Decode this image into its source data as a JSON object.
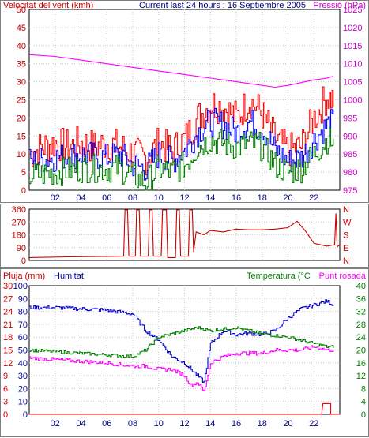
{
  "chart_data": [
    {
      "id": "wind",
      "type": "line",
      "title": "Current last 24 hours : 16 Septiembre 2005",
      "left_label": "Velocitat del vent (kmh)",
      "right_label": "Pressió (hPa)",
      "x_ticks": [
        "02",
        "04",
        "06",
        "08",
        "10",
        "12",
        "14",
        "16",
        "18",
        "20",
        "22"
      ],
      "x_range": [
        0,
        24
      ],
      "y_left": {
        "ticks": [
          "0",
          "5",
          "10",
          "15",
          "20",
          "25",
          "30",
          "35",
          "40",
          "45",
          "50"
        ],
        "range": [
          0,
          50
        ],
        "color": "#cc0000"
      },
      "y_right": {
        "ticks": [
          "975",
          "980",
          "985",
          "990",
          "995",
          "1000",
          "1005",
          "1010",
          "1015",
          "1020",
          "1025"
        ],
        "range": [
          975,
          1025
        ],
        "color": "#cc00cc"
      },
      "grid": true,
      "series": [
        {
          "color": "#ff0000",
          "axis": "left",
          "jitter": 5,
          "points": [
            [
              0,
              10
            ],
            [
              1,
              12
            ],
            [
              2,
              13
            ],
            [
              3,
              12
            ],
            [
              4,
              13
            ],
            [
              5,
              12
            ],
            [
              6,
              13
            ],
            [
              7,
              12
            ],
            [
              8,
              10
            ],
            [
              9,
              9
            ],
            [
              10,
              13
            ],
            [
              11,
              11
            ],
            [
              12,
              14
            ],
            [
              13,
              20
            ],
            [
              14,
              24
            ],
            [
              15,
              23
            ],
            [
              16,
              20
            ],
            [
              17,
              25
            ],
            [
              18,
              21
            ],
            [
              19,
              14
            ],
            [
              20,
              11
            ],
            [
              21,
              12
            ],
            [
              22,
              20
            ],
            [
              23,
              26
            ],
            [
              23.5,
              25
            ]
          ]
        },
        {
          "color": "#0000ff",
          "axis": "left",
          "jitter": 4,
          "points": [
            [
              0,
              8
            ],
            [
              2,
              9
            ],
            [
              4,
              10
            ],
            [
              6,
              9
            ],
            [
              7,
              10
            ],
            [
              8,
              7
            ],
            [
              9,
              6
            ],
            [
              10,
              10
            ],
            [
              11,
              8
            ],
            [
              12,
              11
            ],
            [
              13,
              16
            ],
            [
              14,
              19
            ],
            [
              15,
              18
            ],
            [
              16,
              16
            ],
            [
              17,
              19
            ],
            [
              18,
              17
            ],
            [
              19,
              11
            ],
            [
              20,
              8
            ],
            [
              21,
              9
            ],
            [
              22,
              14
            ],
            [
              23,
              18
            ],
            [
              23.5,
              19
            ]
          ]
        },
        {
          "color": "#008000",
          "axis": "left",
          "jitter": 4,
          "points": [
            [
              0,
              4
            ],
            [
              2,
              5
            ],
            [
              4,
              6
            ],
            [
              6,
              6
            ],
            [
              7,
              6
            ],
            [
              8,
              4
            ],
            [
              9,
              2
            ],
            [
              10,
              6
            ],
            [
              11,
              5
            ],
            [
              12,
              7
            ],
            [
              13,
              12
            ],
            [
              14,
              14
            ],
            [
              15,
              13
            ],
            [
              16,
              12
            ],
            [
              17,
              13
            ],
            [
              18,
              12
            ],
            [
              19,
              7
            ],
            [
              20,
              5
            ],
            [
              21,
              6
            ],
            [
              22,
              10
            ],
            [
              23,
              14
            ],
            [
              23.5,
              13
            ]
          ]
        },
        {
          "color": "#ff00ff",
          "axis": "right",
          "jitter": 0,
          "points": [
            [
              0,
              1012.5
            ],
            [
              2,
              1012
            ],
            [
              4,
              1011
            ],
            [
              6,
              1010
            ],
            [
              8,
              1009
            ],
            [
              10,
              1008
            ],
            [
              12,
              1007
            ],
            [
              14,
              1006
            ],
            [
              16,
              1005
            ],
            [
              18,
              1004
            ],
            [
              19,
              1003.5
            ],
            [
              20,
              1004
            ],
            [
              22,
              1005.5
            ],
            [
              23,
              1006
            ],
            [
              23.5,
              1006.5
            ]
          ]
        }
      ]
    },
    {
      "id": "direction",
      "type": "line",
      "y_left": {
        "ticks": [
          "0",
          "90",
          "180",
          "270",
          "360"
        ],
        "range": [
          0,
          360
        ],
        "color": "#cc0000"
      },
      "y_right": {
        "ticks": [
          "N",
          "E",
          "S",
          "W",
          "N"
        ],
        "color": "#cc0000"
      },
      "x_range": [
        0,
        24
      ],
      "grid": true,
      "series": [
        {
          "color": "#cc0000",
          "points": [
            [
              0,
              20
            ],
            [
              3,
              25
            ],
            [
              6,
              28
            ],
            [
              7.3,
              30
            ],
            [
              7.4,
              355
            ],
            [
              7.6,
              355
            ],
            [
              7.7,
              30
            ],
            [
              8.2,
              30
            ],
            [
              8.3,
              355
            ],
            [
              8.5,
              355
            ],
            [
              8.6,
              30
            ],
            [
              9.2,
              30
            ],
            [
              9.3,
              355
            ],
            [
              9.5,
              355
            ],
            [
              9.6,
              30
            ],
            [
              10.2,
              30
            ],
            [
              10.3,
              355
            ],
            [
              10.6,
              355
            ],
            [
              10.7,
              20
            ],
            [
              11.3,
              20
            ],
            [
              11.4,
              355
            ],
            [
              11.6,
              355
            ],
            [
              11.7,
              30
            ],
            [
              12.3,
              30
            ],
            [
              12.4,
              355
            ],
            [
              12.6,
              355
            ],
            [
              12.7,
              60
            ],
            [
              12.9,
              200
            ],
            [
              13.5,
              180
            ],
            [
              14,
              210
            ],
            [
              15,
              200
            ],
            [
              16,
              220
            ],
            [
              17,
              215
            ],
            [
              18,
              215
            ],
            [
              19,
              220
            ],
            [
              20,
              230
            ],
            [
              20.7,
              275
            ],
            [
              21.4,
              200
            ],
            [
              22,
              120
            ],
            [
              23,
              100
            ],
            [
              23.6,
              110
            ],
            [
              23.7,
              330
            ],
            [
              23.8,
              95
            ],
            [
              24,
              110
            ]
          ]
        }
      ]
    },
    {
      "id": "rain",
      "type": "line",
      "left_label": "Pluja (mm)",
      "mid_label": "Humitat",
      "right_label": "Temperatura (°C",
      "right_label2": "Punt rosada",
      "x_ticks": [
        "02",
        "04",
        "06",
        "08",
        "10",
        "12",
        "14",
        "16",
        "18",
        "20",
        "22"
      ],
      "x_range": [
        0,
        24
      ],
      "y_left": {
        "ticks": [
          "0",
          "3",
          "6",
          "9",
          "12",
          "15",
          "18",
          "21",
          "24",
          "27",
          "30"
        ],
        "range": [
          0,
          30
        ],
        "color": "#cc0000"
      },
      "y_left2": {
        "ticks": [
          "0",
          "10",
          "20",
          "30",
          "40",
          "50",
          "60",
          "70",
          "80",
          "90",
          "100"
        ],
        "range": [
          0,
          100
        ],
        "color": "#000099"
      },
      "y_right": {
        "ticks": [
          "0",
          "4",
          "8",
          "12",
          "16",
          "20",
          "24",
          "28",
          "32",
          "36",
          "40"
        ],
        "range": [
          0,
          40
        ],
        "color": "#008000"
      },
      "grid": true,
      "series": [
        {
          "name": "Humitat",
          "color": "#0000cc",
          "axis": "left2",
          "jitter": 1.5,
          "points": [
            [
              0,
              83
            ],
            [
              2,
              83
            ],
            [
              4,
              82
            ],
            [
              6,
              81
            ],
            [
              8,
              78
            ],
            [
              9,
              65
            ],
            [
              10,
              58
            ],
            [
              11,
              45
            ],
            [
              12,
              40
            ],
            [
              12.5,
              35
            ],
            [
              13,
              30
            ],
            [
              13.5,
              25
            ],
            [
              14,
              55
            ],
            [
              15,
              65
            ],
            [
              16,
              62
            ],
            [
              17,
              63
            ],
            [
              18,
              62
            ],
            [
              19,
              65
            ],
            [
              20,
              75
            ],
            [
              21,
              82
            ],
            [
              22,
              85
            ],
            [
              23,
              88
            ],
            [
              23.5,
              85
            ]
          ]
        },
        {
          "name": "Temperatura",
          "color": "#008000",
          "axis": "right",
          "jitter": 0.5,
          "points": [
            [
              0,
              20
            ],
            [
              2,
              19.5
            ],
            [
              4,
              19
            ],
            [
              6,
              18.5
            ],
            [
              8,
              18
            ],
            [
              9,
              20
            ],
            [
              10,
              24
            ],
            [
              11,
              25
            ],
            [
              12,
              26
            ],
            [
              13,
              27
            ],
            [
              14,
              26
            ],
            [
              15,
              26.5
            ],
            [
              16,
              27
            ],
            [
              17,
              26
            ],
            [
              18,
              25
            ],
            [
              19,
              24.5
            ],
            [
              20,
              24
            ],
            [
              21,
              23
            ],
            [
              22,
              22
            ],
            [
              23,
              21
            ],
            [
              23.5,
              21
            ]
          ]
        },
        {
          "name": "Punt rosada",
          "color": "#ff00ff",
          "axis": "right",
          "jitter": 0.6,
          "points": [
            [
              0,
              17.5
            ],
            [
              2,
              17
            ],
            [
              4,
              16.5
            ],
            [
              6,
              16
            ],
            [
              8,
              15
            ],
            [
              9,
              15
            ],
            [
              10,
              14
            ],
            [
              11,
              14
            ],
            [
              12,
              12
            ],
            [
              12.5,
              9
            ],
            [
              13,
              10
            ],
            [
              13.5,
              7
            ],
            [
              14,
              16
            ],
            [
              15,
              18
            ],
            [
              16,
              19
            ],
            [
              17,
              19
            ],
            [
              18,
              19
            ],
            [
              19,
              20
            ],
            [
              20,
              20
            ],
            [
              21,
              20
            ],
            [
              22,
              21
            ],
            [
              23,
              20
            ],
            [
              23.5,
              20
            ]
          ]
        },
        {
          "name": "Pluja",
          "color": "#ff0000",
          "axis": "left",
          "jitter": 0,
          "points": [
            [
              0,
              0
            ],
            [
              22.6,
              0
            ],
            [
              22.7,
              2.5
            ],
            [
              23.3,
              2.5
            ],
            [
              23.3,
              0
            ],
            [
              24,
              0
            ]
          ]
        }
      ]
    }
  ]
}
